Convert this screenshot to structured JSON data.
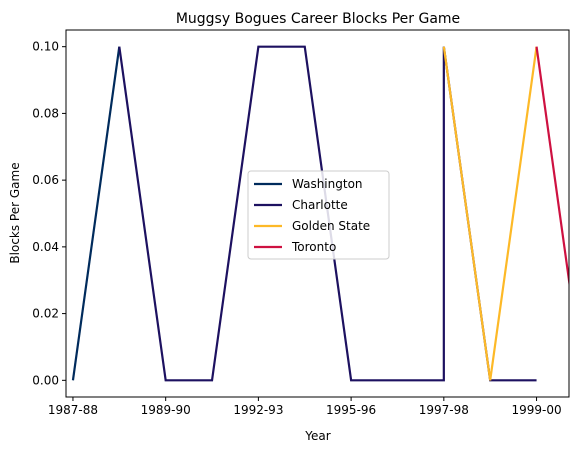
{
  "chart_data": {
    "type": "line",
    "title": "Muggsy Bogues Career Blocks Per Game",
    "xlabel": "Year",
    "ylabel": "Blocks Per Game",
    "x_tick_labels": [
      "1987-88",
      "1989-90",
      "1992-93",
      "1995-96",
      "1997-98",
      "1999-00"
    ],
    "x_tick_positions": [
      0,
      2,
      4,
      6,
      8,
      10
    ],
    "xlim": [
      -0.15,
      10.7
    ],
    "y_ticks": [
      "0.00",
      "0.02",
      "0.04",
      "0.06",
      "0.08",
      "0.10"
    ],
    "ylim": [
      -0.005,
      0.105
    ],
    "grid": false,
    "legend_position": "center",
    "series": [
      {
        "name": "Washington",
        "color": "#002B5C",
        "points": [
          [
            0,
            0.0
          ],
          [
            1,
            0.1
          ]
        ]
      },
      {
        "name": "Charlotte",
        "color": "#1D1160",
        "points": [
          [
            1,
            0.1
          ],
          [
            2,
            0.0
          ],
          [
            3,
            0.0
          ],
          [
            4,
            0.1
          ],
          [
            5,
            0.1
          ],
          [
            6,
            0.0
          ],
          [
            7,
            0.0
          ],
          [
            8,
            0.0
          ],
          [
            8,
            0.1
          ],
          [
            9,
            0.0
          ],
          [
            10,
            0.0
          ]
        ]
      },
      {
        "name": "Golden State",
        "color": "#FDB927",
        "points": [
          [
            8,
            0.1
          ],
          [
            9,
            0.0
          ],
          [
            10,
            0.1
          ]
        ]
      },
      {
        "name": "Toronto",
        "color": "#CE1141",
        "points": [
          [
            10,
            0.1
          ],
          [
            11,
            0.0
          ]
        ]
      }
    ]
  }
}
